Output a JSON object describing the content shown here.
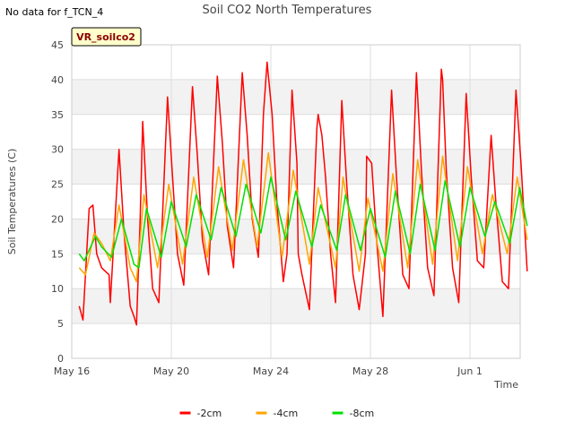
{
  "no_data_note": "No data for f_TCN_4",
  "badge": {
    "label": "VR_soilco2",
    "fill": "#ffffcc",
    "text_color": "#8b0000"
  },
  "chart_data": {
    "type": "line",
    "title": "Soil CO2 North Temperatures",
    "xlabel": "Time",
    "ylabel": "Soil Temperatures (C)",
    "ylim": [
      0,
      45
    ],
    "yticks": [
      0,
      5,
      10,
      15,
      20,
      25,
      30,
      35,
      40,
      45
    ],
    "x_start": "May 16",
    "x_end": "Jun 3",
    "xticks": [
      {
        "day": 0,
        "label": "May 16"
      },
      {
        "day": 4,
        "label": "May 20"
      },
      {
        "day": 8,
        "label": "May 24"
      },
      {
        "day": 12,
        "label": "May 28"
      },
      {
        "day": 16,
        "label": "Jun 1"
      }
    ],
    "grid": true,
    "legend_position": "bottom-center",
    "series": [
      {
        "name": "-2cm",
        "color": "#ff0000",
        "points": [
          [
            0.3,
            7.5
          ],
          [
            0.45,
            5.5
          ],
          [
            0.7,
            21.5
          ],
          [
            0.85,
            22.0
          ],
          [
            1.0,
            15.0
          ],
          [
            1.2,
            13.0
          ],
          [
            1.5,
            12.0
          ],
          [
            1.55,
            8.0
          ],
          [
            1.9,
            30.0
          ],
          [
            2.1,
            18.0
          ],
          [
            2.35,
            7.5
          ],
          [
            2.5,
            6.0
          ],
          [
            2.6,
            4.8
          ],
          [
            2.75,
            20.0
          ],
          [
            2.85,
            34.0
          ],
          [
            3.05,
            20.0
          ],
          [
            3.25,
            10.0
          ],
          [
            3.5,
            8.0
          ],
          [
            3.85,
            37.5
          ],
          [
            4.05,
            26.0
          ],
          [
            4.25,
            15.0
          ],
          [
            4.5,
            10.5
          ],
          [
            4.85,
            39.0
          ],
          [
            5.05,
            29.0
          ],
          [
            5.25,
            17.0
          ],
          [
            5.5,
            12.0
          ],
          [
            5.85,
            40.5
          ],
          [
            6.05,
            31.0
          ],
          [
            6.25,
            19.0
          ],
          [
            6.5,
            13.0
          ],
          [
            6.85,
            41.0
          ],
          [
            7.05,
            32.0
          ],
          [
            7.25,
            20.0
          ],
          [
            7.5,
            14.5
          ],
          [
            7.7,
            35.0
          ],
          [
            7.85,
            42.5
          ],
          [
            8.05,
            35.0
          ],
          [
            8.25,
            22.0
          ],
          [
            8.5,
            11.0
          ],
          [
            8.65,
            15.0
          ],
          [
            8.85,
            38.5
          ],
          [
            9.05,
            28.0
          ],
          [
            9.1,
            15.0
          ],
          [
            9.25,
            12.0
          ],
          [
            9.55,
            7.0
          ],
          [
            9.85,
            33.0
          ],
          [
            9.9,
            35.0
          ],
          [
            10.05,
            32.0
          ],
          [
            10.2,
            26.0
          ],
          [
            10.4,
            15.0
          ],
          [
            10.6,
            8.0
          ],
          [
            10.85,
            37.0
          ],
          [
            11.05,
            25.0
          ],
          [
            11.3,
            12.0
          ],
          [
            11.55,
            7.0
          ],
          [
            11.8,
            15.0
          ],
          [
            11.85,
            29.0
          ],
          [
            12.05,
            28.0
          ],
          [
            12.25,
            17.0
          ],
          [
            12.5,
            6.0
          ],
          [
            12.85,
            38.5
          ],
          [
            13.05,
            26.0
          ],
          [
            13.3,
            12.0
          ],
          [
            13.55,
            10.0
          ],
          [
            13.85,
            41.0
          ],
          [
            14.05,
            27.0
          ],
          [
            14.3,
            13.0
          ],
          [
            14.55,
            9.0
          ],
          [
            14.85,
            41.5
          ],
          [
            14.9,
            40.0
          ],
          [
            15.05,
            27.0
          ],
          [
            15.3,
            13.0
          ],
          [
            15.55,
            8.0
          ],
          [
            15.85,
            38.0
          ],
          [
            16.05,
            26.0
          ],
          [
            16.3,
            14.0
          ],
          [
            16.55,
            13.0
          ],
          [
            16.85,
            32.0
          ],
          [
            17.05,
            22.0
          ],
          [
            17.3,
            11.0
          ],
          [
            17.55,
            10.0
          ],
          [
            17.85,
            38.5
          ],
          [
            18.05,
            28.0
          ],
          [
            18.3,
            12.5
          ]
        ]
      },
      {
        "name": "-4cm",
        "color": "#ffa500",
        "points": [
          [
            0.3,
            13.0
          ],
          [
            0.55,
            12.0
          ],
          [
            0.9,
            18.0
          ],
          [
            1.2,
            16.5
          ],
          [
            1.55,
            14.0
          ],
          [
            1.9,
            22.0
          ],
          [
            2.35,
            13.0
          ],
          [
            2.6,
            11.0
          ],
          [
            2.9,
            23.5
          ],
          [
            3.45,
            13.0
          ],
          [
            3.9,
            25.0
          ],
          [
            4.45,
            13.5
          ],
          [
            4.9,
            26.0
          ],
          [
            5.45,
            14.5
          ],
          [
            5.9,
            27.5
          ],
          [
            6.45,
            15.5
          ],
          [
            6.9,
            28.5
          ],
          [
            7.45,
            16.0
          ],
          [
            7.9,
            29.5
          ],
          [
            8.45,
            14.5
          ],
          [
            8.9,
            27.0
          ],
          [
            9.55,
            13.5
          ],
          [
            9.9,
            24.5
          ],
          [
            10.6,
            13.0
          ],
          [
            10.9,
            26.0
          ],
          [
            11.55,
            12.5
          ],
          [
            11.9,
            23.0
          ],
          [
            12.5,
            12.5
          ],
          [
            12.9,
            26.5
          ],
          [
            13.5,
            13.0
          ],
          [
            13.9,
            28.5
          ],
          [
            14.5,
            13.5
          ],
          [
            14.9,
            29.0
          ],
          [
            15.5,
            14.0
          ],
          [
            15.9,
            27.5
          ],
          [
            16.5,
            15.0
          ],
          [
            16.9,
            23.5
          ],
          [
            17.5,
            15.0
          ],
          [
            17.9,
            26.0
          ],
          [
            18.3,
            17.0
          ]
        ]
      },
      {
        "name": "-8cm",
        "color": "#00e000",
        "points": [
          [
            0.3,
            15.0
          ],
          [
            0.5,
            14.0
          ],
          [
            0.95,
            17.5
          ],
          [
            1.2,
            16.0
          ],
          [
            1.6,
            14.5
          ],
          [
            2.0,
            20.0
          ],
          [
            2.5,
            13.5
          ],
          [
            2.7,
            13.0
          ],
          [
            3.0,
            21.5
          ],
          [
            3.6,
            14.5
          ],
          [
            4.0,
            22.5
          ],
          [
            4.6,
            16.0
          ],
          [
            5.0,
            23.5
          ],
          [
            5.6,
            17.0
          ],
          [
            6.0,
            24.5
          ],
          [
            6.6,
            17.5
          ],
          [
            7.0,
            25.0
          ],
          [
            7.6,
            18.0
          ],
          [
            8.0,
            26.0
          ],
          [
            8.6,
            17.0
          ],
          [
            9.0,
            24.0
          ],
          [
            9.65,
            16.0
          ],
          [
            10.0,
            22.0
          ],
          [
            10.65,
            15.5
          ],
          [
            11.0,
            23.5
          ],
          [
            11.6,
            15.5
          ],
          [
            12.0,
            21.5
          ],
          [
            12.6,
            14.5
          ],
          [
            13.0,
            24.0
          ],
          [
            13.6,
            15.0
          ],
          [
            14.0,
            25.0
          ],
          [
            14.6,
            15.5
          ],
          [
            15.0,
            25.5
          ],
          [
            15.6,
            16.0
          ],
          [
            16.0,
            24.5
          ],
          [
            16.6,
            17.5
          ],
          [
            17.0,
            22.5
          ],
          [
            17.6,
            16.5
          ],
          [
            18.0,
            24.5
          ],
          [
            18.3,
            19.0
          ]
        ]
      }
    ]
  }
}
